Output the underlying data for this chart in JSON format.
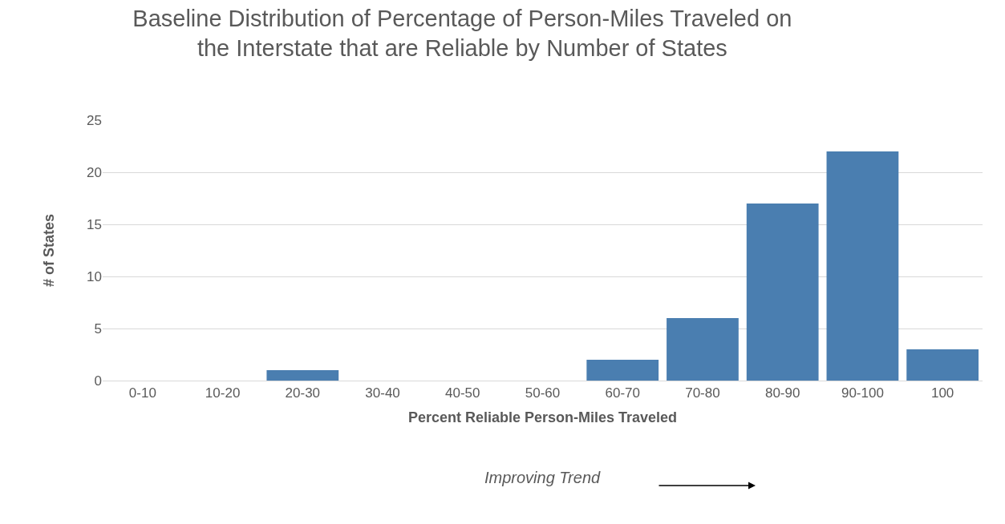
{
  "chart_data": {
    "type": "bar",
    "title": "Baseline Distribution of Percentage of Person-Miles Traveled on\nthe Interstate that are Reliable by Number of States",
    "xlabel": "Percent Reliable Person-Miles Traveled",
    "ylabel": "# of States",
    "categories": [
      "0-10",
      "10-20",
      "20-30",
      "30-40",
      "40-50",
      "50-60",
      "60-70",
      "70-80",
      "80-90",
      "90-100",
      "100"
    ],
    "values": [
      0,
      0,
      1,
      0,
      0,
      0,
      2,
      6,
      17,
      22,
      3
    ],
    "color": "#4a7eb0",
    "ylim": [
      0,
      25
    ],
    "yticks": [
      0,
      5,
      10,
      15,
      20,
      25
    ],
    "grid": "y",
    "annotations": [
      "Improving Trend"
    ]
  }
}
